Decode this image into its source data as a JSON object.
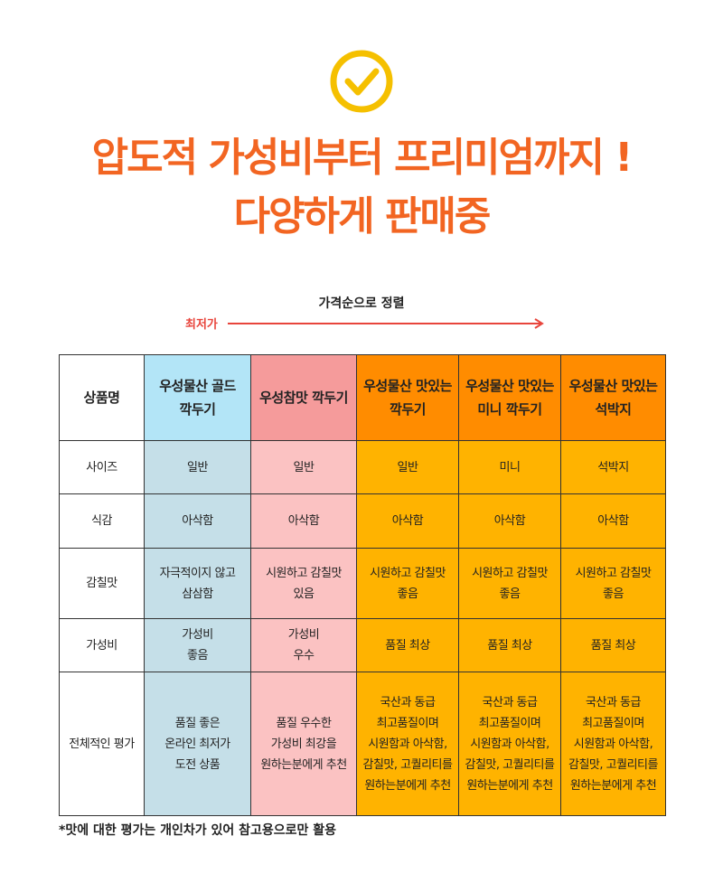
{
  "header": {
    "title_lines": [
      "압도적 가성비부터 프리미엄까지 !",
      "다양하게 판매중"
    ]
  },
  "sort": {
    "label": "가격순으로 정렬",
    "lowest": "최저가"
  },
  "table": {
    "header": [
      "상품명",
      "우성물산 골드\n깍두기",
      "우성참맛 깍두기",
      "우성물산 맛있는\n깍두기",
      "우성물산 맛있는\n미니 깍두기",
      "우성물산 맛있는\n석박지"
    ],
    "rows": [
      [
        "사이즈",
        "일반",
        "일반",
        "일반",
        "미니",
        "석박지"
      ],
      [
        "식감",
        "아삭함",
        "아삭함",
        "아삭함",
        "아삭함",
        "아삭함"
      ],
      [
        "감칠맛",
        "자극적이지 않고\n삼삼함",
        "시원하고 감칠맛\n있음",
        "시원하고 감칠맛\n좋음",
        "시원하고 감칠맛\n좋음",
        "시원하고 감칠맛\n좋음"
      ],
      [
        "가성비",
        "가성비\n좋음",
        "가성비\n우수",
        "품질 최상",
        "품질 최상",
        "품질 최상"
      ],
      [
        "전체적인 평가",
        "품질 좋은\n온라인 최저가\n도전 상품",
        "품질 우수한\n가성비 최강을\n원하는분에게 추천",
        "국산과 동급\n최고품질이며\n시원함과 아삭함,\n감칠맛, 고퀄리티를\n원하는분에게 추천",
        "국산과 동급\n최고품질이며\n시원함과 아삭함,\n감칠맛, 고퀄리티를\n원하는분에게 추천",
        "국산과 동급\n최고품질이며\n시원함과 아삭함,\n감칠맛, 고퀄리티를\n원하는분에게 추천"
      ]
    ]
  },
  "footnote": "*맛에 대한 평가는 개인차가 있어 참고용으로만 활용"
}
